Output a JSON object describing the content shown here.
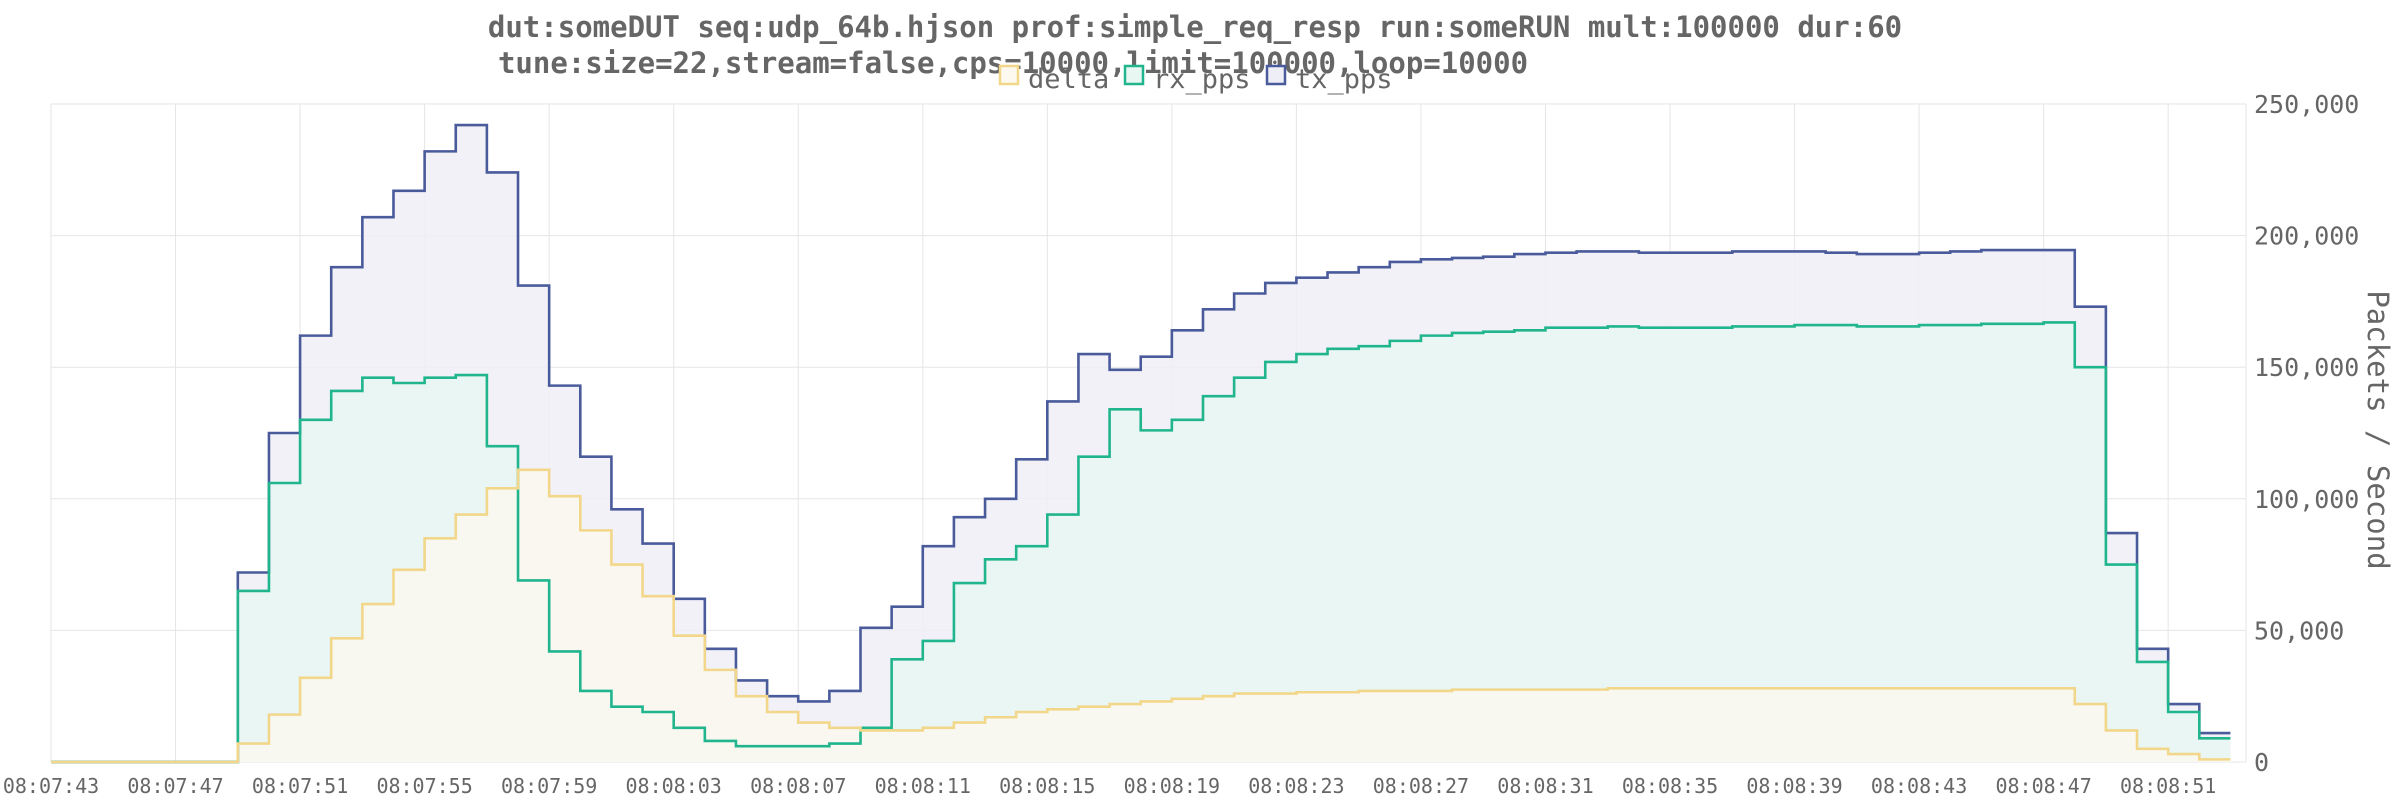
{
  "chart_data": {
    "type": "area",
    "title_lines": [
      "dut:someDUT seq:udp_64b.hjson prof:simple_req_resp run:someRUN mult:100000 dur:60",
      "tune:size=22,stream=false,cps=10000,limit=100000,loop=10000"
    ],
    "xlabel": "",
    "ylabel": "Packets / Second",
    "ylim": [
      0,
      250000
    ],
    "y_ticks": [
      0,
      50000,
      100000,
      150000,
      200000,
      250000
    ],
    "y_tick_labels": [
      "0",
      "50,000",
      "100,000",
      "150,000",
      "200,000",
      "250,000"
    ],
    "x_range_seconds_after_08_07_43": [
      0,
      70.5
    ],
    "x_ticks": [
      "08:07:43",
      "08:07:47",
      "08:07:51",
      "08:07:55",
      "08:07:59",
      "08:08:03",
      "08:08:07",
      "08:08:11",
      "08:08:15",
      "08:08:19",
      "08:08:23",
      "08:08:27",
      "08:08:31",
      "08:08:35",
      "08:08:39",
      "08:08:43",
      "08:08:47",
      "08:08:51"
    ],
    "grid": true,
    "legend_position": "top",
    "y_axis_side": "right",
    "step": "post",
    "sample_interval_s": 1,
    "x_start": "08:07:43",
    "series": [
      {
        "name": "delta",
        "color": "#f2d78a",
        "fill": "#fdf9ef",
        "values": [
          0,
          0,
          0,
          0,
          0,
          0,
          7000,
          18000,
          32000,
          47000,
          60000,
          73000,
          85000,
          94000,
          104000,
          111000,
          101000,
          88000,
          75000,
          63000,
          48000,
          35000,
          25000,
          19000,
          15000,
          13000,
          12000,
          12000,
          13000,
          15000,
          17000,
          19000,
          20000,
          21000,
          22000,
          23000,
          24000,
          25000,
          26000,
          26000,
          26500,
          26500,
          27000,
          27000,
          27000,
          27500,
          27500,
          27500,
          27500,
          27500,
          28000,
          28000,
          28000,
          28000,
          28000,
          28000,
          28000,
          28000,
          28000,
          28000,
          28000,
          28000,
          28000,
          28000,
          28000,
          22000,
          12000,
          5000,
          3000,
          1000
        ]
      },
      {
        "name": "rx_pps",
        "color": "#21b58d",
        "fill": "#e8f7f2",
        "values": [
          0,
          0,
          0,
          0,
          0,
          0,
          65000,
          106000,
          130000,
          141000,
          146000,
          144000,
          146000,
          147000,
          120000,
          69000,
          42000,
          27000,
          21000,
          19000,
          13000,
          8000,
          6000,
          6000,
          6000,
          7000,
          13000,
          39000,
          46000,
          68000,
          77000,
          82000,
          94000,
          116000,
          134000,
          126000,
          130000,
          139000,
          146000,
          152000,
          155000,
          157000,
          158000,
          160000,
          162000,
          163000,
          163500,
          164000,
          165000,
          165000,
          165500,
          165000,
          165000,
          165000,
          165500,
          165500,
          166000,
          166000,
          165500,
          165500,
          166000,
          166000,
          166500,
          166500,
          167000,
          150000,
          75000,
          38000,
          19000,
          9000
        ]
      },
      {
        "name": "tx_pps",
        "color": "#4a5b9c",
        "fill": "#eeeff6",
        "values": [
          0,
          0,
          0,
          0,
          0,
          0,
          72000,
          125000,
          162000,
          188000,
          207000,
          217000,
          232000,
          242000,
          224000,
          181000,
          143000,
          116000,
          96000,
          83000,
          62000,
          43000,
          31000,
          25000,
          23000,
          27000,
          51000,
          59000,
          82000,
          93000,
          100000,
          115000,
          137000,
          155000,
          149000,
          154000,
          164000,
          172000,
          178000,
          182000,
          184000,
          186000,
          188000,
          190000,
          191000,
          191500,
          192000,
          193000,
          193500,
          194000,
          194000,
          193500,
          193500,
          193500,
          194000,
          194000,
          194000,
          193500,
          193000,
          193000,
          193500,
          194000,
          194500,
          194500,
          194500,
          173000,
          87000,
          43000,
          22000,
          11000
        ]
      }
    ]
  }
}
